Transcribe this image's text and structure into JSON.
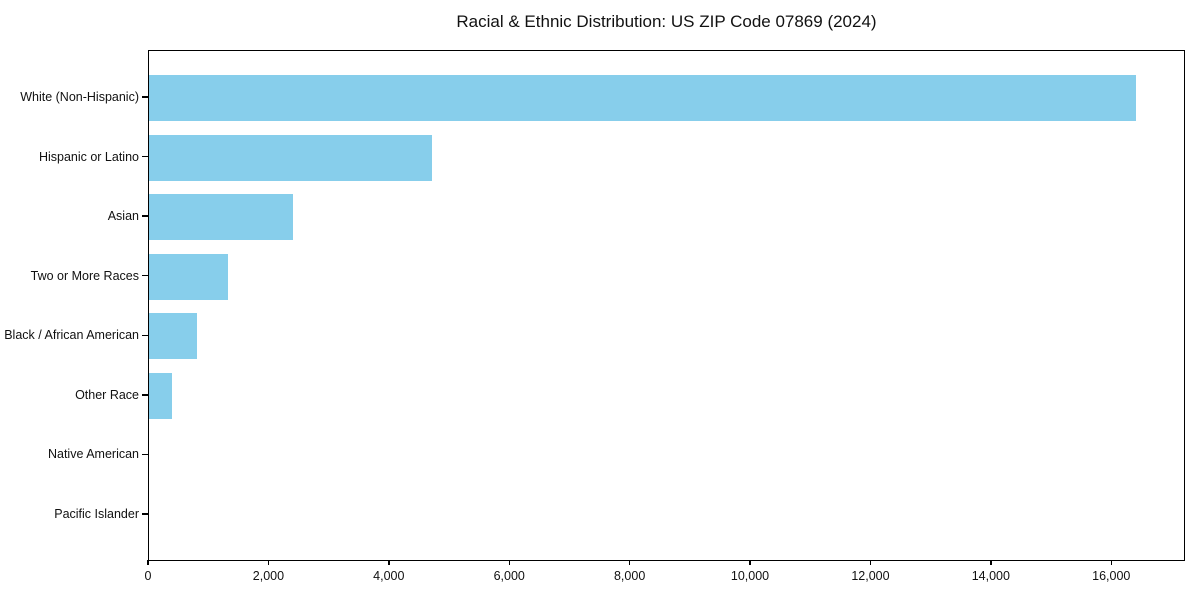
{
  "chart_data": {
    "type": "bar",
    "orientation": "horizontal",
    "title": "Racial & Ethnic Distribution: US ZIP Code 07869 (2024)",
    "categories": [
      "White (Non-Hispanic)",
      "Hispanic or Latino",
      "Asian",
      "Two or More Races",
      "Black / African American",
      "Other Race",
      "Native American",
      "Pacific Islander"
    ],
    "values": [
      16400,
      4700,
      2400,
      1320,
      800,
      375,
      0,
      0
    ],
    "xlabel": "",
    "ylabel": "",
    "xlim": [
      0,
      17225
    ],
    "x_ticks": [
      0,
      2000,
      4000,
      6000,
      8000,
      10000,
      12000,
      14000,
      16000
    ],
    "x_tick_labels": [
      "0",
      "2,000",
      "4,000",
      "6,000",
      "8,000",
      "10,000",
      "12,000",
      "14,000",
      "16,000"
    ],
    "bar_color": "#87CEEB",
    "axis_color": "#000000",
    "background_color": "#ffffff",
    "grid": false,
    "legend": null
  }
}
